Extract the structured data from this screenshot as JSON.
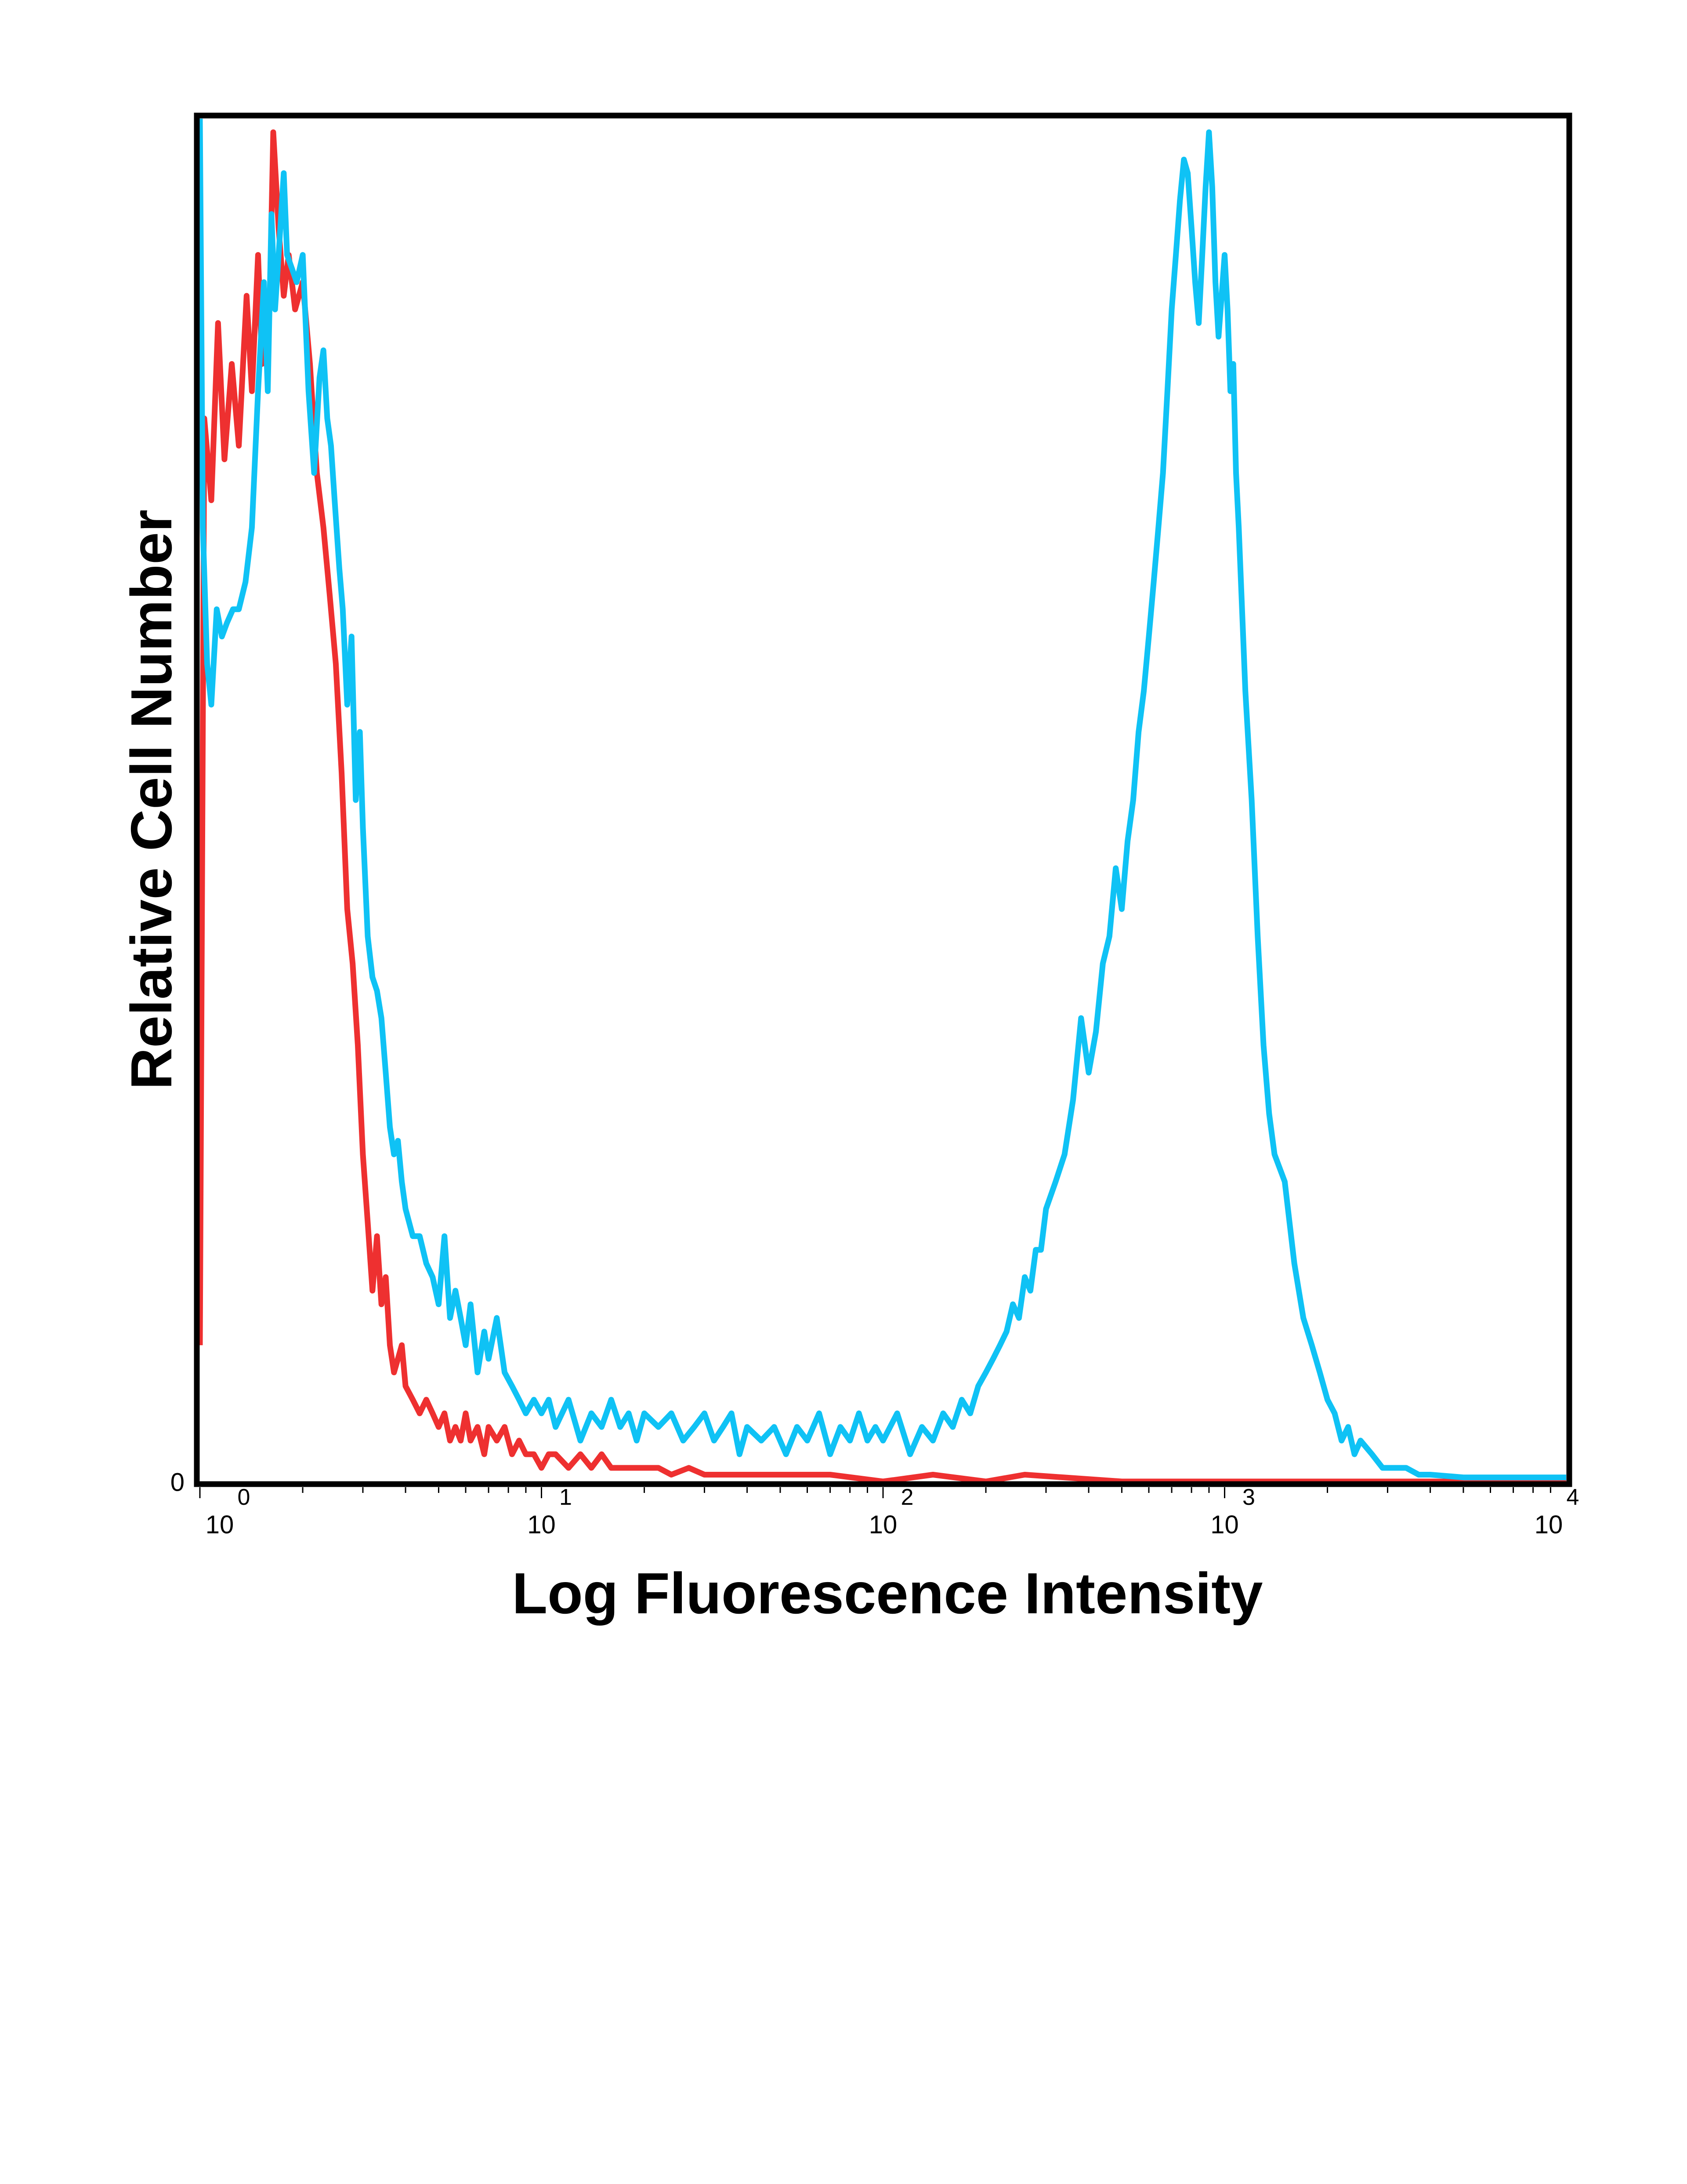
{
  "chart_data": {
    "type": "line",
    "xscale": "log",
    "xlim": [
      1,
      10000
    ],
    "ylim": [
      0,
      100
    ],
    "xlabel": "Log Fluorescence Intensity",
    "ylabel": "Relative Cell Number",
    "y_tick_labels": [
      "0"
    ],
    "x_ticks": [
      {
        "value": 1,
        "base": "10",
        "exp": "0"
      },
      {
        "value": 10,
        "base": "10",
        "exp": "1"
      },
      {
        "value": 100,
        "base": "10",
        "exp": "2"
      },
      {
        "value": 1000,
        "base": "10",
        "exp": "3"
      },
      {
        "value": 10000,
        "base": "10",
        "exp": "4"
      }
    ],
    "grid": false,
    "legend": null,
    "series": [
      {
        "name": "Red histogram",
        "color": "#ee3030",
        "points": [
          [
            1.0,
            10
          ],
          [
            1.03,
            78
          ],
          [
            1.08,
            72
          ],
          [
            1.13,
            85
          ],
          [
            1.18,
            75
          ],
          [
            1.24,
            82
          ],
          [
            1.3,
            76
          ],
          [
            1.37,
            87
          ],
          [
            1.42,
            80
          ],
          [
            1.48,
            90
          ],
          [
            1.52,
            82
          ],
          [
            1.56,
            87
          ],
          [
            1.6,
            86
          ],
          [
            1.64,
            99
          ],
          [
            1.7,
            92
          ],
          [
            1.76,
            87
          ],
          [
            1.82,
            90
          ],
          [
            1.9,
            86
          ],
          [
            2.0,
            88
          ],
          [
            2.1,
            82
          ],
          [
            2.2,
            74
          ],
          [
            2.3,
            70
          ],
          [
            2.4,
            65
          ],
          [
            2.5,
            60
          ],
          [
            2.6,
            52
          ],
          [
            2.7,
            42
          ],
          [
            2.8,
            38
          ],
          [
            2.9,
            32
          ],
          [
            3.0,
            24
          ],
          [
            3.1,
            19
          ],
          [
            3.2,
            14
          ],
          [
            3.3,
            18
          ],
          [
            3.4,
            13
          ],
          [
            3.5,
            15
          ],
          [
            3.6,
            10
          ],
          [
            3.7,
            8
          ],
          [
            3.8,
            9
          ],
          [
            3.9,
            10
          ],
          [
            4.0,
            7
          ],
          [
            4.2,
            6
          ],
          [
            4.4,
            5
          ],
          [
            4.6,
            6
          ],
          [
            4.8,
            5
          ],
          [
            5.0,
            4
          ],
          [
            5.2,
            5
          ],
          [
            5.4,
            3
          ],
          [
            5.6,
            4
          ],
          [
            5.8,
            3
          ],
          [
            6.0,
            5
          ],
          [
            6.2,
            3
          ],
          [
            6.5,
            4
          ],
          [
            6.8,
            2
          ],
          [
            7.0,
            4
          ],
          [
            7.4,
            3
          ],
          [
            7.8,
            4
          ],
          [
            8.2,
            2
          ],
          [
            8.6,
            3
          ],
          [
            9.0,
            2
          ],
          [
            9.5,
            2
          ],
          [
            10.0,
            1
          ],
          [
            10.5,
            2
          ],
          [
            11.0,
            2
          ],
          [
            12.0,
            1
          ],
          [
            13.0,
            2
          ],
          [
            14.0,
            1
          ],
          [
            15.0,
            2
          ],
          [
            16.0,
            1
          ],
          [
            17.0,
            1
          ],
          [
            18.0,
            1
          ],
          [
            20.0,
            1
          ],
          [
            22.0,
            1
          ],
          [
            24.0,
            0.5
          ],
          [
            27.0,
            1
          ],
          [
            30.0,
            0.5
          ],
          [
            35.0,
            0.5
          ],
          [
            40.0,
            0.5
          ],
          [
            50.0,
            0.5
          ],
          [
            70.0,
            0.5
          ],
          [
            100.0,
            0
          ],
          [
            140.0,
            0.5
          ],
          [
            200.0,
            0
          ],
          [
            260.0,
            0.5
          ],
          [
            500.0,
            0
          ],
          [
            1000.0,
            0
          ],
          [
            2000.0,
            0
          ],
          [
            4000.0,
            0
          ],
          [
            10000.0,
            0
          ]
        ]
      },
      {
        "name": "Blue histogram",
        "color": "#0fc2f5",
        "points": [
          [
            1.0,
            100
          ],
          [
            1.02,
            70
          ],
          [
            1.05,
            60
          ],
          [
            1.08,
            57
          ],
          [
            1.12,
            64
          ],
          [
            1.16,
            62
          ],
          [
            1.2,
            63
          ],
          [
            1.25,
            64
          ],
          [
            1.3,
            64
          ],
          [
            1.36,
            66
          ],
          [
            1.42,
            70
          ],
          [
            1.48,
            80
          ],
          [
            1.54,
            88
          ],
          [
            1.58,
            80
          ],
          [
            1.62,
            93
          ],
          [
            1.66,
            86
          ],
          [
            1.7,
            90
          ],
          [
            1.76,
            96
          ],
          [
            1.8,
            90
          ],
          [
            1.86,
            89
          ],
          [
            1.92,
            88
          ],
          [
            2.0,
            90
          ],
          [
            2.08,
            80
          ],
          [
            2.16,
            74
          ],
          [
            2.24,
            81
          ],
          [
            2.3,
            83
          ],
          [
            2.36,
            78
          ],
          [
            2.42,
            76
          ],
          [
            2.48,
            72
          ],
          [
            2.56,
            67
          ],
          [
            2.62,
            64
          ],
          [
            2.7,
            57
          ],
          [
            2.78,
            62
          ],
          [
            2.86,
            50
          ],
          [
            2.94,
            55
          ],
          [
            3.0,
            48
          ],
          [
            3.1,
            40
          ],
          [
            3.2,
            37
          ],
          [
            3.3,
            36
          ],
          [
            3.4,
            34
          ],
          [
            3.5,
            30
          ],
          [
            3.6,
            26
          ],
          [
            3.7,
            24
          ],
          [
            3.8,
            25
          ],
          [
            3.9,
            22
          ],
          [
            4.0,
            20
          ],
          [
            4.2,
            18
          ],
          [
            4.4,
            18
          ],
          [
            4.6,
            16
          ],
          [
            4.8,
            15
          ],
          [
            5.0,
            13
          ],
          [
            5.2,
            18
          ],
          [
            5.4,
            12
          ],
          [
            5.6,
            14
          ],
          [
            5.8,
            12
          ],
          [
            6.0,
            10
          ],
          [
            6.2,
            13
          ],
          [
            6.5,
            8
          ],
          [
            6.8,
            11
          ],
          [
            7.0,
            9
          ],
          [
            7.4,
            12
          ],
          [
            7.8,
            8
          ],
          [
            8.2,
            7
          ],
          [
            8.6,
            6
          ],
          [
            9.0,
            5
          ],
          [
            9.5,
            6
          ],
          [
            10.0,
            5
          ],
          [
            10.5,
            6
          ],
          [
            11.0,
            4
          ],
          [
            12.0,
            6
          ],
          [
            13.0,
            3
          ],
          [
            14.0,
            5
          ],
          [
            15.0,
            4
          ],
          [
            16.0,
            6
          ],
          [
            17.0,
            4
          ],
          [
            18.0,
            5
          ],
          [
            19.0,
            3
          ],
          [
            20.0,
            5
          ],
          [
            22.0,
            4
          ],
          [
            24.0,
            5
          ],
          [
            26.0,
            3
          ],
          [
            28.0,
            4
          ],
          [
            30.0,
            5
          ],
          [
            32.0,
            3
          ],
          [
            34.0,
            4
          ],
          [
            36.0,
            5
          ],
          [
            38.0,
            2
          ],
          [
            40.0,
            4
          ],
          [
            44.0,
            3
          ],
          [
            48.0,
            4
          ],
          [
            52.0,
            2
          ],
          [
            56.0,
            4
          ],
          [
            60.0,
            3
          ],
          [
            65.0,
            5
          ],
          [
            70.0,
            2
          ],
          [
            75.0,
            4
          ],
          [
            80.0,
            3
          ],
          [
            85.0,
            5
          ],
          [
            90.0,
            3
          ],
          [
            95.0,
            4
          ],
          [
            100.0,
            3
          ],
          [
            110.0,
            5
          ],
          [
            120.0,
            2
          ],
          [
            130.0,
            4
          ],
          [
            140.0,
            3
          ],
          [
            150.0,
            5
          ],
          [
            160.0,
            4
          ],
          [
            170.0,
            6
          ],
          [
            180.0,
            5
          ],
          [
            190.0,
            7
          ],
          [
            200.0,
            8
          ],
          [
            210.0,
            9
          ],
          [
            220.0,
            10
          ],
          [
            230.0,
            11
          ],
          [
            240.0,
            13
          ],
          [
            250.0,
            12
          ],
          [
            260.0,
            15
          ],
          [
            270.0,
            14
          ],
          [
            280.0,
            17
          ],
          [
            290.0,
            17
          ],
          [
            300.0,
            20
          ],
          [
            320.0,
            22
          ],
          [
            340.0,
            24
          ],
          [
            360.0,
            28
          ],
          [
            380.0,
            34
          ],
          [
            400.0,
            30
          ],
          [
            420.0,
            33
          ],
          [
            440.0,
            38
          ],
          [
            460.0,
            40
          ],
          [
            480.0,
            45
          ],
          [
            500.0,
            42
          ],
          [
            520.0,
            47
          ],
          [
            540.0,
            50
          ],
          [
            560.0,
            55
          ],
          [
            580.0,
            58
          ],
          [
            600.0,
            62
          ],
          [
            620.0,
            66
          ],
          [
            640.0,
            70
          ],
          [
            660.0,
            74
          ],
          [
            680.0,
            80
          ],
          [
            700.0,
            86
          ],
          [
            720.0,
            90
          ],
          [
            740.0,
            94
          ],
          [
            760.0,
            97
          ],
          [
            780.0,
            96
          ],
          [
            800.0,
            92
          ],
          [
            820.0,
            88
          ],
          [
            840.0,
            85
          ],
          [
            860.0,
            90
          ],
          [
            880.0,
            95
          ],
          [
            900.0,
            99
          ],
          [
            920.0,
            95
          ],
          [
            940.0,
            88
          ],
          [
            960.0,
            84
          ],
          [
            980.0,
            87
          ],
          [
            1000.0,
            90
          ],
          [
            1020.0,
            86
          ],
          [
            1040.0,
            80
          ],
          [
            1060.0,
            82
          ],
          [
            1080.0,
            74
          ],
          [
            1100.0,
            70
          ],
          [
            1150.0,
            58
          ],
          [
            1200.0,
            50
          ],
          [
            1250.0,
            40
          ],
          [
            1300.0,
            32
          ],
          [
            1350.0,
            27
          ],
          [
            1400.0,
            24
          ],
          [
            1500.0,
            22
          ],
          [
            1600.0,
            16
          ],
          [
            1700.0,
            12
          ],
          [
            1800.0,
            10
          ],
          [
            1900.0,
            8
          ],
          [
            2000.0,
            6
          ],
          [
            2100.0,
            5
          ],
          [
            2200.0,
            3
          ],
          [
            2300.0,
            4
          ],
          [
            2400.0,
            2
          ],
          [
            2500.0,
            3
          ],
          [
            2700.0,
            2
          ],
          [
            2900.0,
            1
          ],
          [
            3100.0,
            1
          ],
          [
            3400.0,
            1
          ],
          [
            3700.0,
            0.5
          ],
          [
            4000.0,
            0.5
          ],
          [
            5000.0,
            0.3
          ],
          [
            7000.0,
            0.3
          ],
          [
            10000.0,
            0.3
          ]
        ]
      }
    ]
  }
}
